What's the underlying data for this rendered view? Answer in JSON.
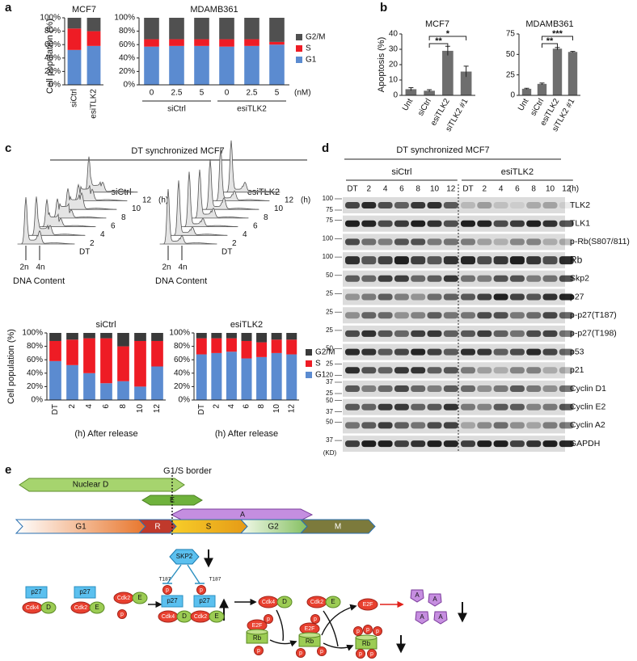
{
  "panel_labels": [
    "a",
    "b",
    "c",
    "d",
    "e"
  ],
  "chart_data": [
    {
      "type": "stacked_bar",
      "title": "MCF7",
      "ylabel": "Cell population (%)",
      "categories": [
        "siCtrl",
        "esiTLK2"
      ],
      "series": [
        {
          "color": "#5b8bd0",
          "values": [
            52,
            58
          ]
        },
        {
          "color": "#ee1c25",
          "values": [
            32,
            22
          ]
        },
        {
          "color": "#505050",
          "values": [
            16,
            20
          ]
        }
      ],
      "ylim": [
        0,
        100
      ],
      "yticks": [
        {
          "value": 0,
          "label": "0%"
        },
        {
          "value": 20,
          "label": "20%"
        },
        {
          "value": 40,
          "label": "40%"
        },
        {
          "value": 60,
          "label": "60%"
        },
        {
          "value": 80,
          "label": "80%"
        },
        {
          "value": 100,
          "label": "100%"
        }
      ]
    },
    {
      "type": "stacked_bar",
      "title": "MDAMB361",
      "xlabel": "(nM)",
      "categories": [
        "0",
        "2.5",
        "5",
        "0",
        "2.5",
        "5"
      ],
      "groups": [
        "siCtrl",
        "esiTLK2"
      ],
      "series": [
        {
          "name": "G1",
          "color": "#5b8bd0",
          "values": [
            57,
            58,
            58,
            57,
            58,
            60
          ]
        },
        {
          "name": "S",
          "color": "#ee1c25",
          "values": [
            11,
            10,
            10,
            11,
            10,
            4
          ]
        },
        {
          "name": "G2/M",
          "color": "#505050",
          "values": [
            32,
            32,
            32,
            32,
            32,
            36
          ]
        }
      ],
      "legend": "right",
      "ylim": [
        0,
        100
      ],
      "yticks": [
        {
          "value": 0,
          "label": "0%"
        },
        {
          "value": 20,
          "label": "20%"
        },
        {
          "value": 40,
          "label": "40%"
        },
        {
          "value": 60,
          "label": "60%"
        },
        {
          "value": 80,
          "label": "80%"
        },
        {
          "value": 100,
          "label": "100%"
        }
      ]
    },
    {
      "type": "bar",
      "title": "MCF7",
      "ylabel": "Apoptosis (%)",
      "categories": [
        "Unt",
        "siCtrl",
        "esiTLK2",
        "siTLK2 #1"
      ],
      "values": [
        4,
        3,
        29,
        15.5
      ],
      "errors": [
        1,
        0.7,
        3,
        3.5
      ],
      "color": "#6e6e6e",
      "annotations": [
        "**",
        "*"
      ],
      "ylim": [
        0,
        40
      ],
      "yticks": [
        0,
        10,
        20,
        30,
        40
      ]
    },
    {
      "type": "bar",
      "title": "MDAMB361",
      "categories": [
        "Unt",
        "siCtrl",
        "esiTLK2",
        "siTLK2 #1"
      ],
      "values": [
        8,
        14,
        57,
        53
      ],
      "errors": [
        0.6,
        1,
        1.5,
        0.6
      ],
      "color": "#6e6e6e",
      "annotations": [
        "**",
        "***"
      ],
      "ylim": [
        0,
        75
      ],
      "yticks": [
        0,
        25,
        50,
        75
      ]
    },
    {
      "type": "stacked_bar",
      "title": "siCtrl",
      "ylabel": "Cell population (%)",
      "xlabel": "(h) After release",
      "categories": [
        "DT",
        "2",
        "4",
        "6",
        "8",
        "10",
        "12"
      ],
      "series": [
        {
          "color": "#5b8bd0",
          "values": [
            58,
            52,
            40,
            25,
            28,
            20,
            50
          ]
        },
        {
          "color": "#ee1c25",
          "values": [
            30,
            38,
            52,
            67,
            52,
            68,
            38
          ]
        },
        {
          "color": "#3a3a3a",
          "values": [
            12,
            10,
            8,
            8,
            20,
            12,
            12
          ]
        }
      ],
      "ylim": [
        0,
        100
      ],
      "yticks": [
        {
          "value": 0,
          "label": "0%"
        },
        {
          "value": 20,
          "label": "20%"
        },
        {
          "value": 40,
          "label": "40%"
        },
        {
          "value": 60,
          "label": "60%"
        },
        {
          "value": 80,
          "label": "80%"
        },
        {
          "value": 100,
          "label": "100%"
        }
      ]
    },
    {
      "type": "stacked_bar",
      "title": "esiTLK2",
      "xlabel": "(h) After release",
      "categories": [
        "DT",
        "2",
        "4",
        "6",
        "8",
        "10",
        "12"
      ],
      "series": [
        {
          "name": "G1",
          "color": "#5b8bd0",
          "values": [
            68,
            70,
            72,
            62,
            64,
            70,
            68
          ]
        },
        {
          "name": "S",
          "color": "#ee1c25",
          "values": [
            24,
            22,
            20,
            26,
            22,
            20,
            22
          ]
        },
        {
          "name": "G2/M",
          "color": "#3a3a3a",
          "values": [
            8,
            8,
            8,
            12,
            14,
            10,
            10
          ]
        }
      ],
      "legend": "right",
      "ylim": [
        0,
        100
      ],
      "yticks": [
        {
          "value": 0,
          "label": "0%"
        },
        {
          "value": 20,
          "label": "20%"
        },
        {
          "value": 40,
          "label": "40%"
        },
        {
          "value": 60,
          "label": "60%"
        },
        {
          "value": 80,
          "label": "80%"
        },
        {
          "value": 100,
          "label": "100%"
        }
      ]
    }
  ],
  "panel_c": {
    "title": "DT synchronized MCF7",
    "ridges": [
      "siCtrl",
      "esiTLK2"
    ],
    "times": [
      "DT",
      "2",
      "4",
      "6",
      "8",
      "10",
      "12"
    ],
    "time_unit": "(h)",
    "dna_marks": [
      "2n",
      "4n"
    ],
    "dna_label": "DNA Content"
  },
  "panel_d": {
    "title": "DT synchronized MCF7",
    "groups": [
      "siCtrl",
      "esiTLK2"
    ],
    "lanes": [
      "DT",
      "2",
      "4",
      "6",
      "8",
      "10",
      "12"
    ],
    "time_unit": "(h)",
    "unit": "(KD)",
    "rows": [
      {
        "protein": "TLK2",
        "markers": [
          100,
          75
        ]
      },
      {
        "protein": "TLK1",
        "markers": [
          75
        ]
      },
      {
        "protein": "p-Rb(S807/811)",
        "markers": [
          100
        ]
      },
      {
        "protein": "Rb",
        "markers": [
          100
        ]
      },
      {
        "protein": "Skp2",
        "markers": [
          50
        ]
      },
      {
        "protein": "p27",
        "markers": [
          25
        ]
      },
      {
        "protein": "p-p27(T187)",
        "markers": [
          25
        ]
      },
      {
        "protein": "p-p27(T198)",
        "markers": [
          25
        ]
      },
      {
        "protein": "p53",
        "markers": [
          50
        ]
      },
      {
        "protein": "p21",
        "markers": [
          25,
          20
        ]
      },
      {
        "protein": "Cyclin D1",
        "markers": [
          37,
          25
        ]
      },
      {
        "protein": "Cyclin E2",
        "markers": [
          50,
          37
        ]
      },
      {
        "protein": "Cyclin A2",
        "markers": [
          50
        ]
      },
      {
        "protein": "GAPDH",
        "markers": [
          37
        ]
      }
    ]
  },
  "panel_e": {
    "border_label": "G1/S border",
    "phase_bars": [
      "Nuclear D",
      "E",
      "A"
    ],
    "cell_cycle": [
      "G1",
      "R",
      "S",
      "G2",
      "M"
    ],
    "nodes": [
      "SKP2",
      "p27",
      "Cdk4",
      "D",
      "p27",
      "Cdk2",
      "E",
      "Cdk2",
      "E",
      "p",
      "T187",
      "p",
      "p27",
      "Cdk4",
      "D",
      "T187",
      "p",
      "p27",
      "Cdk2",
      "E",
      "Cdk4",
      "D",
      "p",
      "Cdk2",
      "E",
      "p",
      "E2F",
      "A",
      "A",
      "A",
      "A",
      "E2F",
      "Rb",
      "p",
      "E2F",
      "Rb",
      "p",
      "p",
      "Rb",
      "p",
      "p",
      "p",
      "p",
      "p"
    ]
  }
}
